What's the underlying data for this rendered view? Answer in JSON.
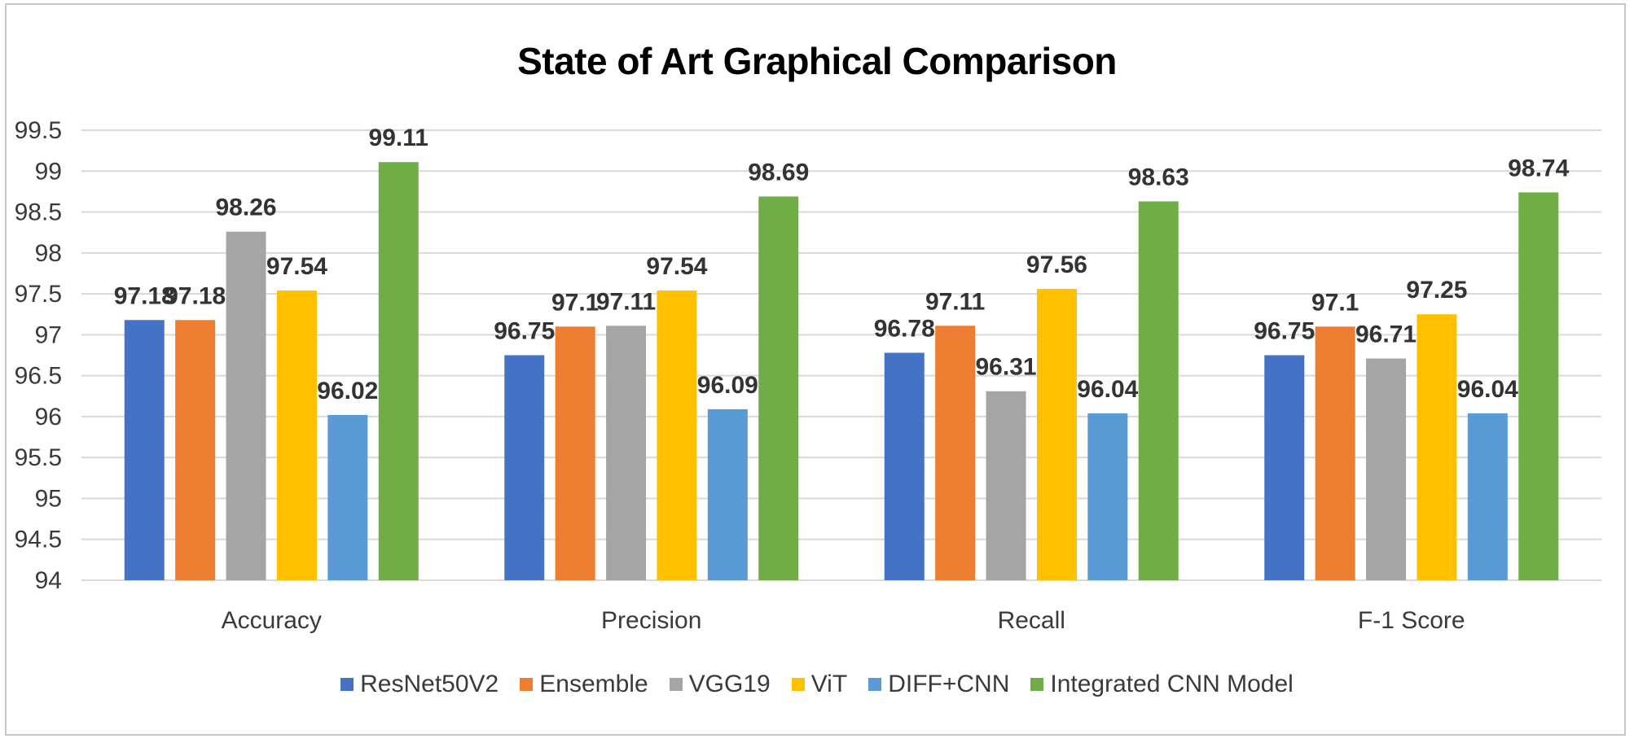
{
  "chart_data": {
    "type": "bar",
    "title": "State of Art Graphical Comparison",
    "xlabel": "",
    "ylabel": "",
    "ylim": [
      94,
      99.5
    ],
    "yticks": [
      "94",
      "94.5",
      "95",
      "95.5",
      "96",
      "96.5",
      "97",
      "97.5",
      "98",
      "98.5",
      "99",
      "99.5"
    ],
    "grid": true,
    "legend_position": "bottom",
    "categories": [
      "Accuracy",
      "Precision",
      "Recall",
      "F-1 Score"
    ],
    "series": [
      {
        "name": "ResNet50V2",
        "color": "#4472C4",
        "values": [
          97.18,
          96.75,
          96.78,
          96.75
        ]
      },
      {
        "name": "Ensemble",
        "color": "#ED7D31",
        "values": [
          97.18,
          97.1,
          97.11,
          97.1
        ]
      },
      {
        "name": "VGG19",
        "color": "#A5A5A5",
        "values": [
          98.26,
          97.11,
          96.31,
          96.71
        ]
      },
      {
        "name": "ViT",
        "color": "#FFC000",
        "values": [
          97.54,
          97.54,
          97.56,
          97.25
        ]
      },
      {
        "name": "DIFF+CNN",
        "color": "#5B9BD5",
        "values": [
          96.02,
          96.09,
          96.04,
          96.04
        ]
      },
      {
        "name": "Integrated CNN Model",
        "color": "#70AD47",
        "values": [
          99.11,
          98.69,
          98.63,
          98.74
        ]
      }
    ],
    "data_labels": [
      [
        "97.18",
        "97.18",
        "98.26",
        "97.54",
        "96.02",
        "99.11"
      ],
      [
        "96.75",
        "97.1",
        "97.11",
        "97.54",
        "96.09",
        "98.69"
      ],
      [
        "96.78",
        "97.11",
        "96.31",
        "97.56",
        "96.04",
        "98.63"
      ],
      [
        "96.75",
        "97.1",
        "96.71",
        "97.25",
        "96.04",
        "98.74"
      ]
    ]
  }
}
